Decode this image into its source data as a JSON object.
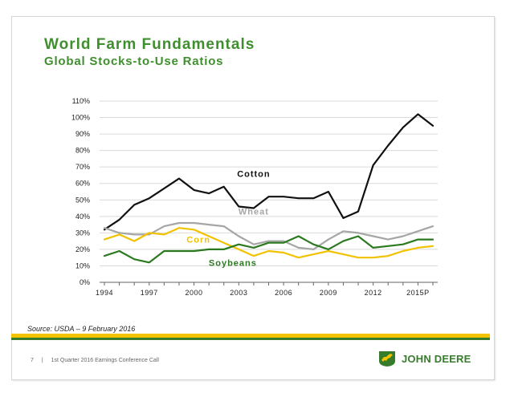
{
  "title": "World Farm Fundamentals",
  "subtitle": "Global Stocks-to-Use Ratios",
  "source": "Source: USDA – 9 February 2016",
  "footer": {
    "page_number": "7",
    "separator": "|",
    "label": "1st Quarter 2016 Earnings Conference Call"
  },
  "logo": {
    "text": "JOHN DEERE",
    "icon": "leaping-deer-icon"
  },
  "colors": {
    "title": "#3f8f2f",
    "cotton": "#111111",
    "wheat": "#a6a6a6",
    "corn": "#f2c200",
    "soybeans": "#2b7a1f",
    "footer_bar_yellow": "#f4c300",
    "footer_bar_green": "#367c2b"
  },
  "chart_data": {
    "type": "line",
    "title": "",
    "xlabel": "",
    "ylabel": "",
    "ylim": [
      0,
      110
    ],
    "yticks": [
      "0%",
      "10%",
      "20%",
      "30%",
      "40%",
      "50%",
      "60%",
      "70%",
      "80%",
      "90%",
      "100%",
      "110%"
    ],
    "x": [
      1994,
      1995,
      1996,
      1997,
      1998,
      1999,
      2000,
      2001,
      2002,
      2003,
      2004,
      2005,
      2006,
      2007,
      2008,
      2009,
      2010,
      2011,
      2012,
      2013,
      2014,
      2015,
      2016
    ],
    "xtick_labels": [
      {
        "x": 1994,
        "label": "1994"
      },
      {
        "x": 1997,
        "label": "1997"
      },
      {
        "x": 2000,
        "label": "2000"
      },
      {
        "x": 2003,
        "label": "2003"
      },
      {
        "x": 2006,
        "label": "2006"
      },
      {
        "x": 2009,
        "label": "2009"
      },
      {
        "x": 2012,
        "label": "2012"
      },
      {
        "x": 2015,
        "label": "2015P"
      }
    ],
    "grid": true,
    "series": [
      {
        "name": "Cotton",
        "key": "cotton",
        "values": [
          32,
          38,
          47,
          51,
          57,
          63,
          56,
          54,
          58,
          46,
          45,
          52,
          52,
          51,
          51,
          55,
          39,
          43,
          71,
          83,
          94,
          102,
          95
        ]
      },
      {
        "name": "Wheat",
        "key": "wheat",
        "values": [
          33,
          30,
          29,
          29,
          34,
          36,
          36,
          35,
          34,
          28,
          23,
          25,
          25,
          21,
          20,
          26,
          31,
          30,
          28,
          26,
          28,
          31,
          34
        ]
      },
      {
        "name": "Corn",
        "key": "corn",
        "values": [
          26,
          29,
          25,
          30,
          29,
          33,
          32,
          28,
          24,
          20,
          16,
          19,
          18,
          15,
          17,
          19,
          17,
          15,
          15,
          16,
          19,
          21,
          22
        ]
      },
      {
        "name": "Soybeans",
        "key": "soybeans",
        "values": [
          16,
          19,
          14,
          12,
          19,
          19,
          19,
          20,
          20,
          23,
          21,
          24,
          24,
          28,
          23,
          20,
          25,
          28,
          21,
          22,
          23,
          26,
          26
        ]
      }
    ],
    "annotations": [
      {
        "series": "cotton",
        "text": "Cotton",
        "x": 2004.0,
        "y": 66
      },
      {
        "series": "wheat",
        "text": "Wheat",
        "x": 2004.0,
        "y": 43
      },
      {
        "series": "corn",
        "text": "Corn",
        "x": 2000.3,
        "y": 26
      },
      {
        "series": "soybeans",
        "text": "Soybeans",
        "x": 2002.6,
        "y": 12
      }
    ]
  }
}
